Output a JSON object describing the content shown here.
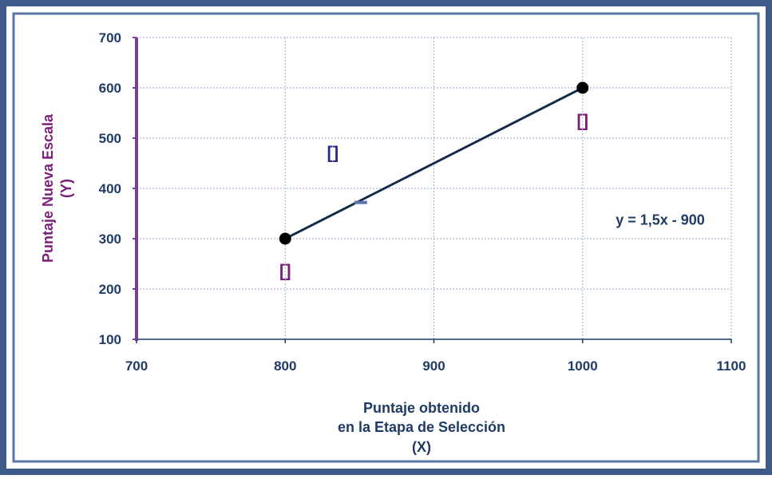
{
  "chart_data": {
    "type": "scatter",
    "title": "",
    "xlabel_lines": [
      "Puntaje obtenido",
      "en la Etapa de Selección",
      "(X)"
    ],
    "ylabel_lines": [
      "Puntaje Nueva Escala",
      "(Y)"
    ],
    "xlim": [
      700,
      1100
    ],
    "ylim": [
      100,
      700
    ],
    "x_ticks": [
      700,
      800,
      900,
      1000,
      1100
    ],
    "y_ticks": [
      100,
      200,
      300,
      400,
      500,
      600,
      700
    ],
    "grid": true,
    "series": [
      {
        "points": [
          [
            800,
            300
          ],
          [
            1000,
            600
          ]
        ],
        "marker": "circle",
        "line": "dotted"
      }
    ],
    "equation": "y = 1,5x - 900",
    "annotations": [
      {
        "text": "[]",
        "x": 800,
        "y": 237,
        "color": "#7a1f78"
      },
      {
        "text": "[]",
        "x": 1000,
        "y": 536,
        "color": "#7a1f78"
      },
      {
        "text": "[]",
        "x": 832,
        "y": 472,
        "color": "#2c2a8a"
      }
    ],
    "colors": {
      "outer_border": "#3d5a8a",
      "inner_border": "#5a76a6",
      "label_text": "#1f3b66",
      "y_axis": "#7a3fa0",
      "y_title": "#7a1f78",
      "grid": "#9ab0d6",
      "line": "#1f3b66",
      "marker": "#000000"
    }
  }
}
